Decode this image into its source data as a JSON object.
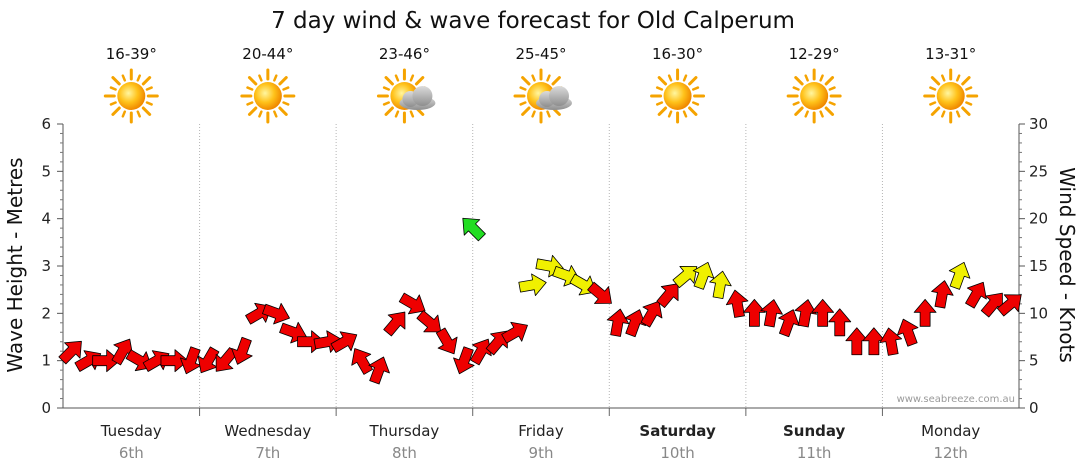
{
  "chart_data": {
    "type": "line",
    "title": "7 day wind & wave forecast for Old Calperum",
    "ylabel_left": "Wave Height - Metres",
    "ylabel_right": "Wind Speed - Knots",
    "ylim_left": [
      0,
      6
    ],
    "ylim_right": [
      0,
      30
    ],
    "left_ticks": [
      "0",
      "1",
      "2",
      "3",
      "4",
      "5",
      "6"
    ],
    "right_ticks": [
      "0",
      "5",
      "10",
      "15",
      "20",
      "25",
      "30"
    ],
    "days": [
      {
        "name": "Tuesday",
        "date": "6th",
        "temp": "16-39°",
        "weather": "sunny",
        "bold": false
      },
      {
        "name": "Wednesday",
        "date": "7th",
        "temp": "20-44°",
        "weather": "sunny",
        "bold": false
      },
      {
        "name": "Thursday",
        "date": "8th",
        "temp": "23-46°",
        "weather": "partly-cloudy",
        "bold": false
      },
      {
        "name": "Friday",
        "date": "9th",
        "temp": "25-45°",
        "weather": "partly-cloudy",
        "bold": false
      },
      {
        "name": "Saturday",
        "date": "10th",
        "temp": "16-30°",
        "weather": "sunny",
        "bold": true
      },
      {
        "name": "Sunday",
        "date": "11th",
        "temp": "12-29°",
        "weather": "sunny",
        "bold": true
      },
      {
        "name": "Monday",
        "date": "12th",
        "temp": "13-31°",
        "weather": "sunny",
        "bold": false
      }
    ],
    "wind_series": {
      "name": "Wind speed (knots) with direction, 3-hourly",
      "x_days": [
        0.0,
        0.125,
        0.25,
        0.375,
        0.5,
        0.625,
        0.75,
        0.875,
        1.0,
        1.125,
        1.25,
        1.375,
        1.5,
        1.625,
        1.75,
        1.875,
        2.0,
        2.125,
        2.25,
        2.375,
        2.5,
        2.625,
        2.75,
        2.875,
        3.0,
        3.125,
        3.25,
        3.375,
        3.5,
        3.625,
        3.75,
        3.875,
        4.0,
        4.125,
        4.25,
        4.375,
        4.5,
        4.625,
        4.75,
        4.875,
        5.0,
        5.125,
        5.25,
        5.375,
        5.5,
        5.625,
        5.75,
        5.875,
        6.0,
        6.125,
        6.25,
        6.375,
        6.5,
        6.625,
        6.75,
        6.875
      ],
      "knots": [
        6,
        5,
        5,
        6,
        5,
        5,
        5,
        5,
        5,
        5,
        6,
        10,
        10,
        8,
        7,
        7,
        7,
        5,
        4,
        9,
        11,
        9,
        7,
        5,
        6,
        7,
        8,
        13,
        15,
        14,
        13,
        12,
        9,
        9,
        10,
        12,
        14,
        14,
        13,
        11,
        10,
        10,
        9,
        10,
        10,
        9,
        7,
        7,
        7,
        8,
        10,
        12,
        14,
        12,
        11,
        11
      ],
      "direction_deg": [
        45,
        60,
        90,
        30,
        120,
        60,
        90,
        200,
        210,
        220,
        200,
        60,
        110,
        110,
        90,
        80,
        60,
        330,
        20,
        40,
        120,
        130,
        150,
        200,
        30,
        40,
        60,
        80,
        100,
        110,
        120,
        130,
        10,
        20,
        30,
        40,
        50,
        20,
        10,
        350,
        0,
        10,
        20,
        10,
        0,
        0,
        0,
        0,
        350,
        340,
        0,
        10,
        20,
        30,
        40,
        50
      ],
      "colour_scale": [
        {
          "max_knots": 12,
          "colour": "#ee0000"
        },
        {
          "max_knots": 17,
          "colour": "#f0f000"
        },
        {
          "max_knots": 30,
          "colour": "#22dd22"
        }
      ]
    },
    "special_marker": {
      "day": 3.0,
      "knots": 19,
      "colour": "#22dd22",
      "direction_deg": 315
    },
    "watermark": "www.seabreeze.com.au"
  }
}
